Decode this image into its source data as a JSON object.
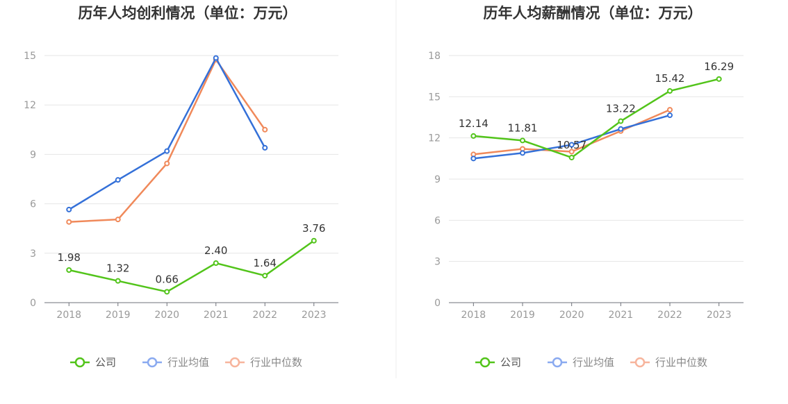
{
  "colors": {
    "company": "#52c41a",
    "industry_avg": "#3470d8",
    "industry_median": "#f0895a",
    "legend_avg": "#8aaaf0",
    "legend_median": "#f7b49c"
  },
  "chart_data": [
    {
      "type": "line",
      "title": "历年人均创利情况（单位：万元）",
      "categories": [
        "2018",
        "2019",
        "2020",
        "2021",
        "2022",
        "2023"
      ],
      "ylim": [
        0,
        15
      ],
      "yticks": [
        "0",
        "3",
        "6",
        "9",
        "12",
        "15"
      ],
      "grid": true,
      "legend": "bottom-center",
      "series": [
        {
          "name": "公司",
          "values": [
            1.98,
            1.32,
            0.66,
            2.4,
            1.64,
            3.76
          ],
          "labels": [
            "1.98",
            "1.32",
            "0.66",
            "2.40",
            "1.64",
            "3.76"
          ]
        },
        {
          "name": "行业均值",
          "values": [
            5.65,
            7.45,
            9.2,
            14.85,
            9.4,
            null
          ]
        },
        {
          "name": "行业中位数",
          "values": [
            4.9,
            5.05,
            8.45,
            14.75,
            10.5,
            null
          ]
        }
      ]
    },
    {
      "type": "line",
      "title": "历年人均薪酬情况（单位：万元）",
      "categories": [
        "2018",
        "2019",
        "2020",
        "2021",
        "2022",
        "2023"
      ],
      "ylim": [
        0,
        18
      ],
      "yticks": [
        "0",
        "3",
        "6",
        "9",
        "12",
        "15",
        "18"
      ],
      "grid": true,
      "legend": "bottom-center",
      "series": [
        {
          "name": "公司",
          "values": [
            12.14,
            11.81,
            10.57,
            13.22,
            15.42,
            16.29
          ],
          "labels": [
            "12.14",
            "11.81",
            "10.57",
            "13.22",
            "15.42",
            "16.29"
          ]
        },
        {
          "name": "行业均值",
          "values": [
            10.5,
            10.9,
            11.5,
            12.65,
            13.65,
            null
          ]
        },
        {
          "name": "行业中位数",
          "values": [
            10.8,
            11.2,
            11.0,
            12.5,
            14.05,
            null
          ]
        }
      ]
    }
  ]
}
